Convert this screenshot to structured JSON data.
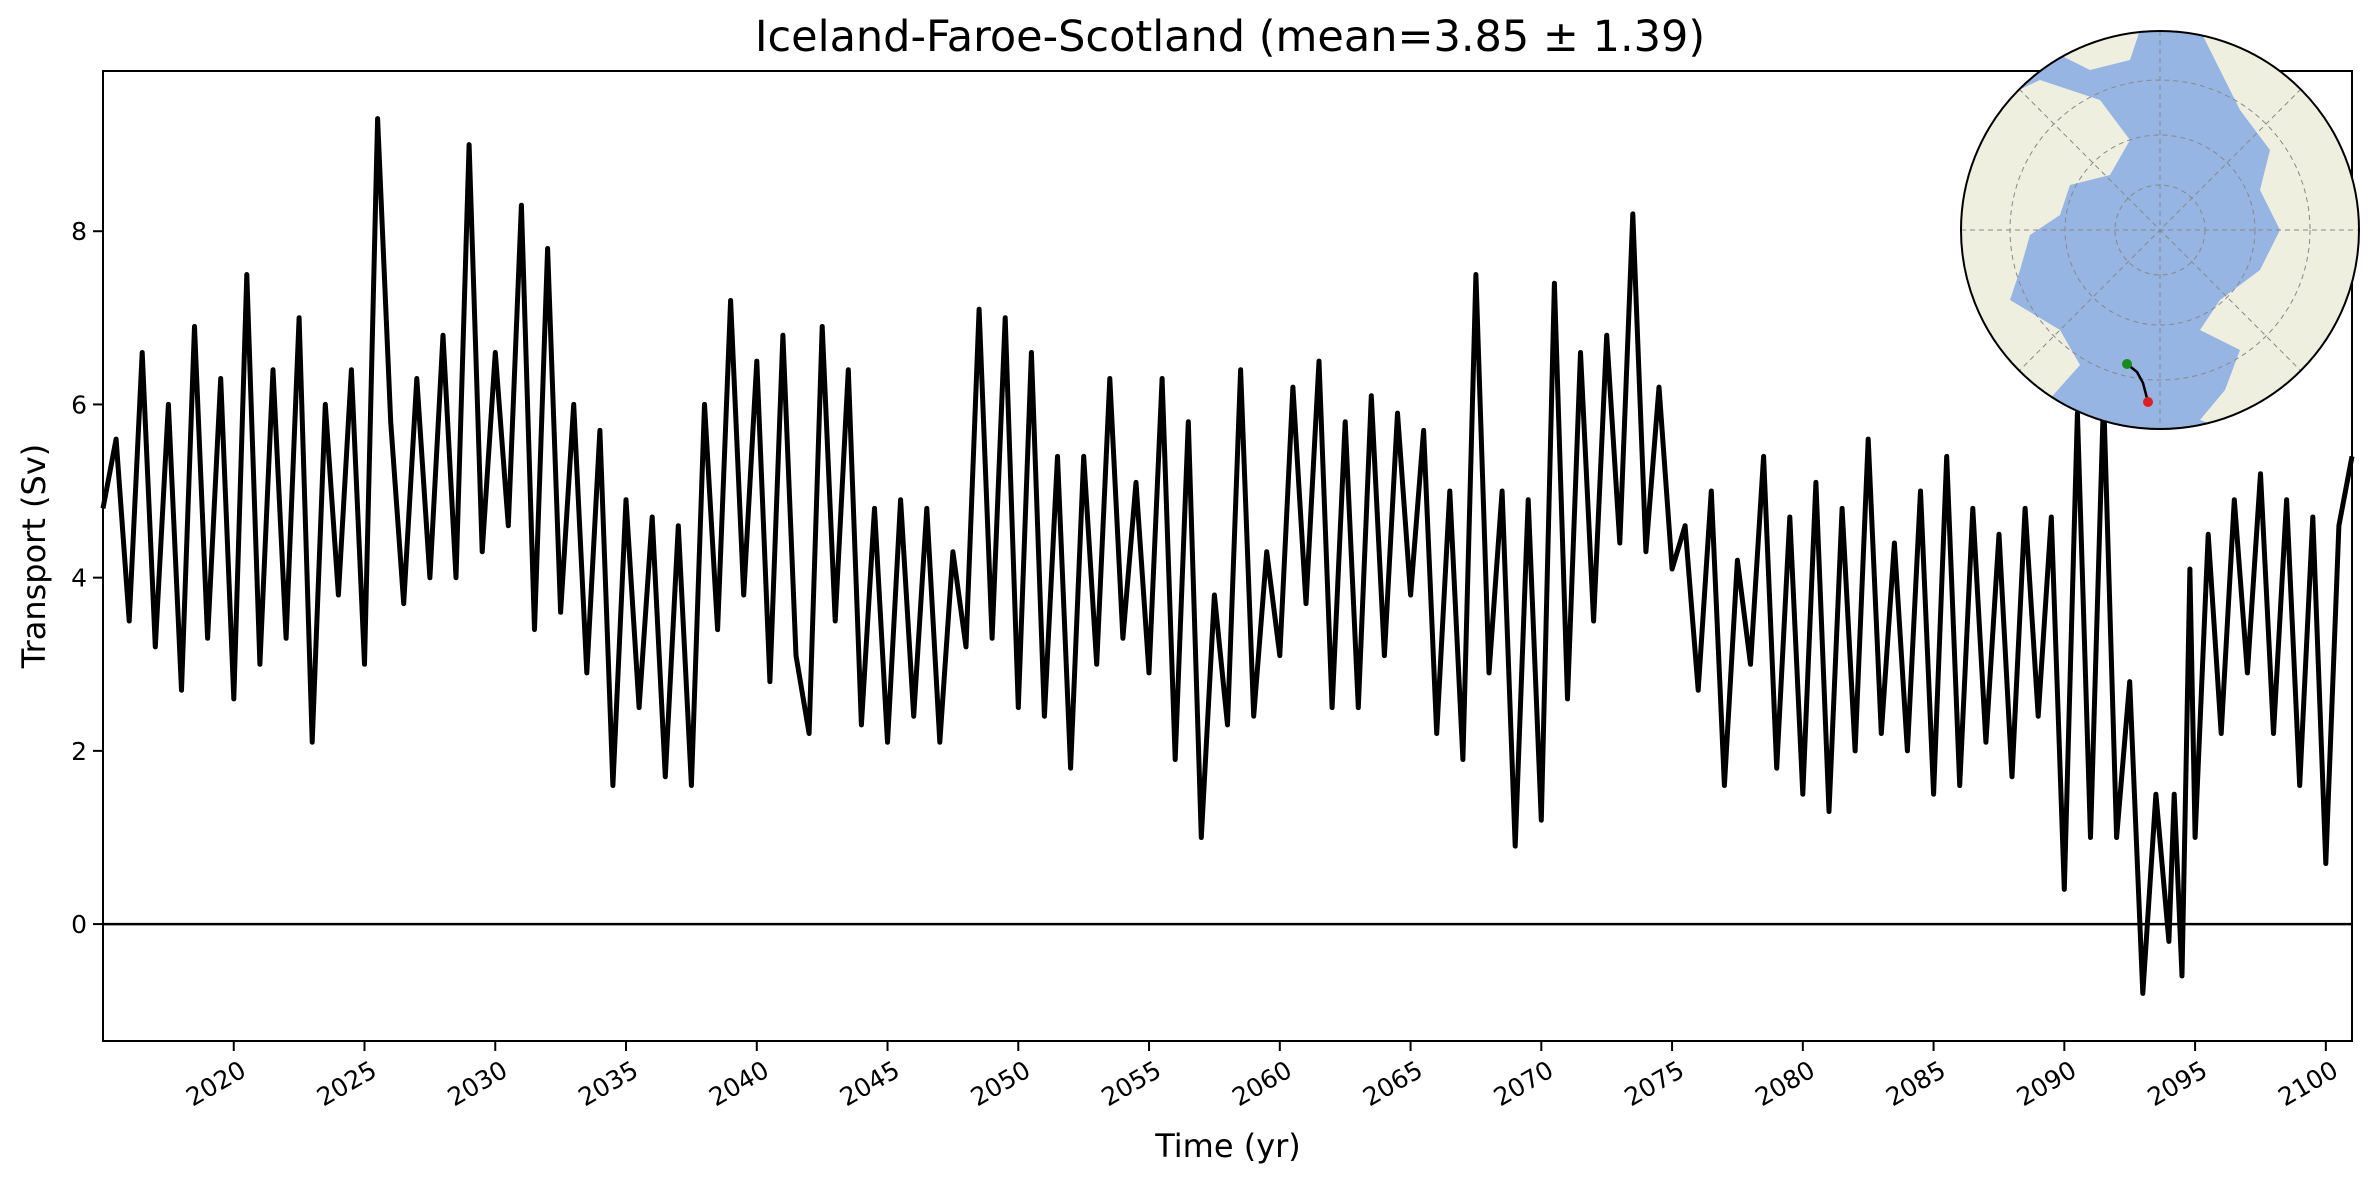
{
  "chart_data": {
    "type": "line",
    "title": "Iceland-Faroe-Scotland (mean=3.85 ± 1.39)",
    "xlabel": "Time (yr)",
    "ylabel": "Transport (Sv)",
    "xlim": [
      2015.0,
      2101.0
    ],
    "ylim": [
      -1.35,
      9.85
    ],
    "xticks": [
      "2020",
      "2025",
      "2030",
      "2035",
      "2040",
      "2045",
      "2050",
      "2055",
      "2060",
      "2065",
      "2070",
      "2075",
      "2080",
      "2085",
      "2090",
      "2095",
      "2100"
    ],
    "yticks": [
      "0",
      "2",
      "4",
      "6",
      "8"
    ],
    "grid": false,
    "legend": "none",
    "reference_line_y": 0,
    "line_color": "#000000",
    "series": [
      {
        "x": [
          2015.0,
          2015.5,
          2016.0,
          2016.5,
          2017.0,
          2017.5,
          2018.0,
          2018.5,
          2019.0,
          2019.5,
          2020.0,
          2020.5,
          2021.0,
          2021.5,
          2022.0,
          2022.5,
          2023.0,
          2023.5,
          2024.0,
          2024.5,
          2025.0,
          2025.5,
          2026.0,
          2026.5,
          2027.0,
          2027.5,
          2028.0,
          2028.5,
          2029.0,
          2029.5,
          2030.0,
          2030.5,
          2031.0,
          2031.5,
          2032.0,
          2032.5,
          2033.0,
          2033.5,
          2034.0,
          2034.5,
          2035.0,
          2035.5,
          2036.0,
          2036.5,
          2037.0,
          2037.5,
          2038.0,
          2038.5,
          2039.0,
          2039.5,
          2040.0,
          2040.5,
          2041.0,
          2041.5,
          2042.0,
          2042.5,
          2043.0,
          2043.5,
          2044.0,
          2044.5,
          2045.0,
          2045.5,
          2046.0,
          2046.5,
          2047.0,
          2047.5,
          2048.0,
          2048.5,
          2049.0,
          2049.5,
          2050.0,
          2050.5,
          2051.0,
          2051.5,
          2052.0,
          2052.5,
          2053.0,
          2053.5,
          2054.0,
          2054.5,
          2055.0,
          2055.5,
          2056.0,
          2056.5,
          2057.0,
          2057.5,
          2058.0,
          2058.5,
          2059.0,
          2059.5,
          2060.0,
          2060.5,
          2061.0,
          2061.5,
          2062.0,
          2062.5,
          2063.0,
          2063.5,
          2064.0,
          2064.5,
          2065.0,
          2065.5,
          2066.0,
          2066.5,
          2067.0,
          2067.5,
          2068.0,
          2068.5,
          2069.0,
          2069.5,
          2070.0,
          2070.5,
          2071.0,
          2071.5,
          2072.0,
          2072.5,
          2073.0,
          2073.5,
          2074.0,
          2074.5,
          2075.0,
          2075.5,
          2076.0,
          2076.5,
          2077.0,
          2077.5,
          2078.0,
          2078.5,
          2079.0,
          2079.5,
          2080.0,
          2080.5,
          2081.0,
          2081.5,
          2082.0,
          2082.5,
          2083.0,
          2083.5,
          2084.0,
          2084.5,
          2085.0,
          2085.5,
          2086.0,
          2086.5,
          2087.0,
          2087.5,
          2088.0,
          2088.5,
          2089.0,
          2089.5,
          2090.0,
          2090.5,
          2091.0,
          2091.5,
          2092.0,
          2092.5,
          2093.0,
          2093.5,
          2094.0,
          2094.2,
          2094.5,
          2094.8,
          2095.0,
          2095.5,
          2096.0,
          2096.5,
          2097.0,
          2097.5,
          2098.0,
          2098.5,
          2099.0,
          2099.5,
          2100.0,
          2100.5,
          2101.0
        ],
        "y": [
          4.8,
          5.6,
          3.5,
          6.6,
          3.2,
          6.0,
          2.7,
          6.9,
          3.3,
          6.3,
          2.6,
          7.5,
          3.0,
          6.4,
          3.3,
          7.0,
          2.1,
          6.0,
          3.8,
          6.4,
          3.0,
          9.3,
          5.8,
          3.7,
          6.3,
          4.0,
          6.8,
          4.0,
          9.0,
          4.3,
          6.6,
          4.6,
          8.3,
          3.4,
          7.8,
          3.6,
          6.0,
          2.9,
          5.7,
          1.6,
          4.9,
          2.5,
          4.7,
          1.7,
          4.6,
          1.6,
          6.0,
          3.4,
          7.2,
          3.8,
          6.5,
          2.8,
          6.8,
          3.1,
          2.2,
          6.9,
          3.5,
          6.4,
          2.3,
          4.8,
          2.1,
          4.9,
          2.4,
          4.8,
          2.1,
          4.3,
          3.2,
          7.1,
          3.3,
          7.0,
          2.5,
          6.6,
          2.4,
          5.4,
          1.8,
          5.4,
          3.0,
          6.3,
          3.3,
          5.1,
          2.9,
          6.3,
          1.9,
          5.8,
          1.0,
          3.8,
          2.3,
          6.4,
          2.4,
          4.3,
          3.1,
          6.2,
          3.7,
          6.5,
          2.5,
          5.8,
          2.5,
          6.1,
          3.1,
          5.9,
          3.8,
          5.7,
          2.2,
          5.0,
          1.9,
          7.5,
          2.9,
          5.0,
          0.9,
          4.9,
          1.2,
          7.4,
          2.6,
          6.6,
          3.5,
          6.8,
          4.4,
          8.2,
          4.3,
          6.2,
          4.1,
          4.6,
          2.7,
          5.0,
          1.6,
          4.2,
          3.0,
          5.4,
          1.8,
          4.7,
          1.5,
          5.1,
          1.3,
          4.8,
          2.0,
          5.6,
          2.2,
          4.4,
          2.0,
          5.0,
          1.5,
          5.4,
          1.6,
          4.8,
          2.1,
          4.5,
          1.7,
          4.8,
          2.4,
          4.7,
          0.4,
          5.9,
          1.0,
          6.1,
          1.0,
          2.8,
          -0.8,
          1.5,
          -0.2,
          1.5,
          -0.6,
          4.1,
          1.0,
          4.5,
          2.2,
          4.9,
          2.9,
          5.2,
          2.2,
          4.9,
          1.6,
          4.7,
          0.7,
          4.6,
          5.4
        ]
      }
    ],
    "inset_map": {
      "projection": "north-polar-stereographic",
      "ocean_color": "#96b5e3",
      "land_color": "#efefdf",
      "section_start_color": "#1a8a1a",
      "section_end_color": "#e02020"
    }
  }
}
